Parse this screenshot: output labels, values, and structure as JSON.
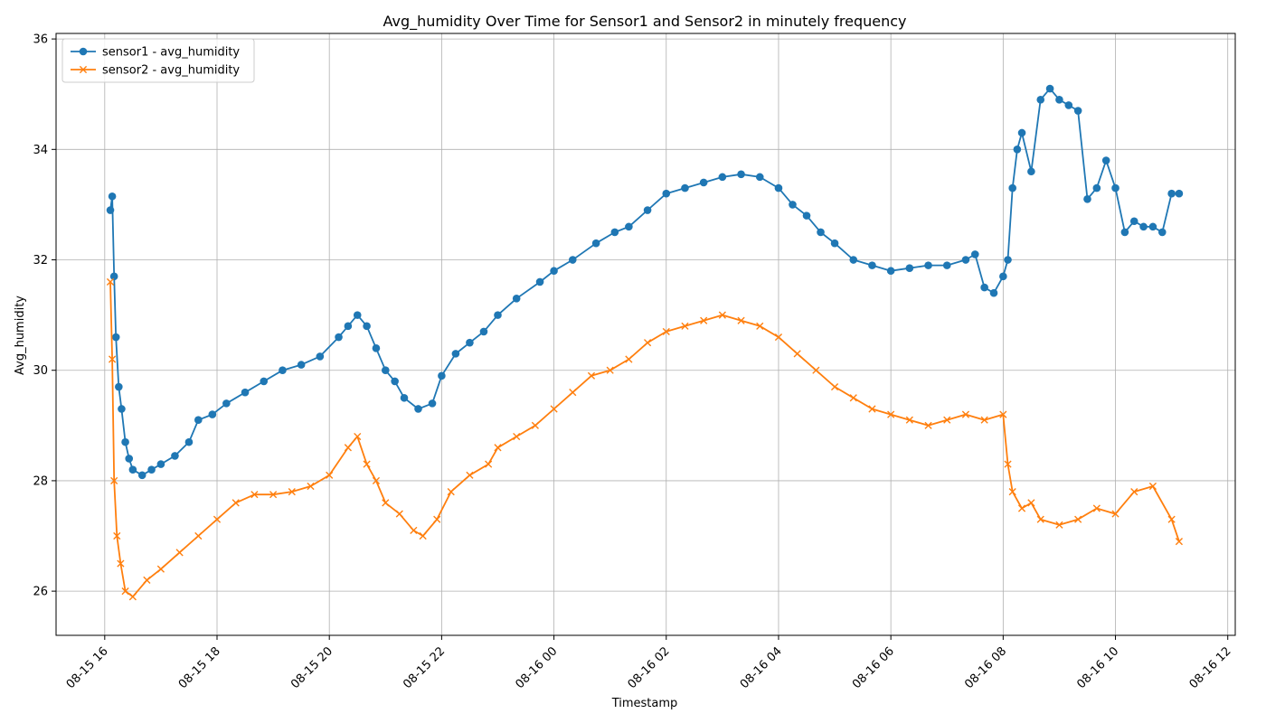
{
  "chart_data": {
    "type": "line",
    "title": "Avg_humidity Over Time for Sensor1 and Sensor2 in minutely frequency",
    "xlabel": "Timestamp",
    "ylabel": "Avg_humidity",
    "x_range": [
      "2025-08-15 15:08",
      "2025-08-16 12:08"
    ],
    "ylim": [
      25.2,
      36.1
    ],
    "x_ticks": [
      "08-15 16",
      "08-15 18",
      "08-15 20",
      "08-15 22",
      "08-16 00",
      "08-16 02",
      "08-16 04",
      "08-16 06",
      "08-16 08",
      "08-16 10",
      "08-16 12"
    ],
    "y_ticks": [
      "26",
      "28",
      "30",
      "32",
      "34",
      "36"
    ],
    "grid": true,
    "legend_position": "top-left",
    "series": [
      {
        "name": "sensor1 - avg_humidity",
        "color": "#1f77b4",
        "marker": "circle",
        "points": [
          [
            "2025-08-15 16:06",
            32.9
          ],
          [
            "2025-08-15 16:08",
            33.15
          ],
          [
            "2025-08-15 16:10",
            31.7
          ],
          [
            "2025-08-15 16:12",
            30.6
          ],
          [
            "2025-08-15 16:15",
            29.7
          ],
          [
            "2025-08-15 16:18",
            29.3
          ],
          [
            "2025-08-15 16:22",
            28.7
          ],
          [
            "2025-08-15 16:26",
            28.4
          ],
          [
            "2025-08-15 16:30",
            28.2
          ],
          [
            "2025-08-15 16:40",
            28.1
          ],
          [
            "2025-08-15 16:50",
            28.2
          ],
          [
            "2025-08-15 17:00",
            28.3
          ],
          [
            "2025-08-15 17:15",
            28.45
          ],
          [
            "2025-08-15 17:30",
            28.7
          ],
          [
            "2025-08-15 17:40",
            29.1
          ],
          [
            "2025-08-15 17:55",
            29.2
          ],
          [
            "2025-08-15 18:10",
            29.4
          ],
          [
            "2025-08-15 18:30",
            29.6
          ],
          [
            "2025-08-15 18:50",
            29.8
          ],
          [
            "2025-08-15 19:10",
            30.0
          ],
          [
            "2025-08-15 19:30",
            30.1
          ],
          [
            "2025-08-15 19:50",
            30.25
          ],
          [
            "2025-08-15 20:10",
            30.6
          ],
          [
            "2025-08-15 20:20",
            30.8
          ],
          [
            "2025-08-15 20:30",
            31.0
          ],
          [
            "2025-08-15 20:40",
            30.8
          ],
          [
            "2025-08-15 20:50",
            30.4
          ],
          [
            "2025-08-15 21:00",
            30.0
          ],
          [
            "2025-08-15 21:10",
            29.8
          ],
          [
            "2025-08-15 21:20",
            29.5
          ],
          [
            "2025-08-15 21:35",
            29.3
          ],
          [
            "2025-08-15 21:50",
            29.4
          ],
          [
            "2025-08-15 22:00",
            29.9
          ],
          [
            "2025-08-15 22:15",
            30.3
          ],
          [
            "2025-08-15 22:30",
            30.5
          ],
          [
            "2025-08-15 22:45",
            30.7
          ],
          [
            "2025-08-15 23:00",
            31.0
          ],
          [
            "2025-08-15 23:20",
            31.3
          ],
          [
            "2025-08-15 23:45",
            31.6
          ],
          [
            "2025-08-16 00:00",
            31.8
          ],
          [
            "2025-08-16 00:20",
            32.0
          ],
          [
            "2025-08-16 00:45",
            32.3
          ],
          [
            "2025-08-16 01:05",
            32.5
          ],
          [
            "2025-08-16 01:20",
            32.6
          ],
          [
            "2025-08-16 01:40",
            32.9
          ],
          [
            "2025-08-16 02:00",
            33.2
          ],
          [
            "2025-08-16 02:20",
            33.3
          ],
          [
            "2025-08-16 02:40",
            33.4
          ],
          [
            "2025-08-16 03:00",
            33.5
          ],
          [
            "2025-08-16 03:20",
            33.55
          ],
          [
            "2025-08-16 03:40",
            33.5
          ],
          [
            "2025-08-16 04:00",
            33.3
          ],
          [
            "2025-08-16 04:15",
            33.0
          ],
          [
            "2025-08-16 04:30",
            32.8
          ],
          [
            "2025-08-16 04:45",
            32.5
          ],
          [
            "2025-08-16 05:00",
            32.3
          ],
          [
            "2025-08-16 05:20",
            32.0
          ],
          [
            "2025-08-16 05:40",
            31.9
          ],
          [
            "2025-08-16 06:00",
            31.8
          ],
          [
            "2025-08-16 06:20",
            31.85
          ],
          [
            "2025-08-16 06:40",
            31.9
          ],
          [
            "2025-08-16 07:00",
            31.9
          ],
          [
            "2025-08-16 07:20",
            32.0
          ],
          [
            "2025-08-16 07:30",
            32.1
          ],
          [
            "2025-08-16 07:40",
            31.5
          ],
          [
            "2025-08-16 07:50",
            31.4
          ],
          [
            "2025-08-16 08:00",
            31.7
          ],
          [
            "2025-08-16 08:05",
            32.0
          ],
          [
            "2025-08-16 08:10",
            33.3
          ],
          [
            "2025-08-16 08:15",
            34.0
          ],
          [
            "2025-08-16 08:20",
            34.3
          ],
          [
            "2025-08-16 08:30",
            33.6
          ],
          [
            "2025-08-16 08:40",
            34.9
          ],
          [
            "2025-08-16 08:50",
            35.1
          ],
          [
            "2025-08-16 09:00",
            34.9
          ],
          [
            "2025-08-16 09:10",
            34.8
          ],
          [
            "2025-08-16 09:20",
            34.7
          ],
          [
            "2025-08-16 09:30",
            33.1
          ],
          [
            "2025-08-16 09:40",
            33.3
          ],
          [
            "2025-08-16 09:50",
            33.8
          ],
          [
            "2025-08-16 10:00",
            33.3
          ],
          [
            "2025-08-16 10:10",
            32.5
          ],
          [
            "2025-08-16 10:20",
            32.7
          ],
          [
            "2025-08-16 10:30",
            32.6
          ],
          [
            "2025-08-16 10:40",
            32.6
          ],
          [
            "2025-08-16 10:50",
            32.5
          ],
          [
            "2025-08-16 11:00",
            33.2
          ],
          [
            "2025-08-16 11:08",
            33.2
          ]
        ]
      },
      {
        "name": "sensor2 - avg_humidity",
        "color": "#ff7f0e",
        "marker": "x",
        "points": [
          [
            "2025-08-15 16:06",
            31.6
          ],
          [
            "2025-08-15 16:08",
            30.2
          ],
          [
            "2025-08-15 16:10",
            28.0
          ],
          [
            "2025-08-15 16:13",
            27.0
          ],
          [
            "2025-08-15 16:17",
            26.5
          ],
          [
            "2025-08-15 16:22",
            26.0
          ],
          [
            "2025-08-15 16:30",
            25.9
          ],
          [
            "2025-08-15 16:45",
            26.2
          ],
          [
            "2025-08-15 17:00",
            26.4
          ],
          [
            "2025-08-15 17:20",
            26.7
          ],
          [
            "2025-08-15 17:40",
            27.0
          ],
          [
            "2025-08-15 18:00",
            27.3
          ],
          [
            "2025-08-15 18:20",
            27.6
          ],
          [
            "2025-08-15 18:40",
            27.75
          ],
          [
            "2025-08-15 19:00",
            27.75
          ],
          [
            "2025-08-15 19:20",
            27.8
          ],
          [
            "2025-08-15 19:40",
            27.9
          ],
          [
            "2025-08-15 20:00",
            28.1
          ],
          [
            "2025-08-15 20:20",
            28.6
          ],
          [
            "2025-08-15 20:30",
            28.8
          ],
          [
            "2025-08-15 20:40",
            28.3
          ],
          [
            "2025-08-15 20:50",
            28.0
          ],
          [
            "2025-08-15 21:00",
            27.6
          ],
          [
            "2025-08-15 21:15",
            27.4
          ],
          [
            "2025-08-15 21:30",
            27.1
          ],
          [
            "2025-08-15 21:40",
            27.0
          ],
          [
            "2025-08-15 21:55",
            27.3
          ],
          [
            "2025-08-15 22:10",
            27.8
          ],
          [
            "2025-08-15 22:30",
            28.1
          ],
          [
            "2025-08-15 22:50",
            28.3
          ],
          [
            "2025-08-15 23:00",
            28.6
          ],
          [
            "2025-08-15 23:20",
            28.8
          ],
          [
            "2025-08-15 23:40",
            29.0
          ],
          [
            "2025-08-16 00:00",
            29.3
          ],
          [
            "2025-08-16 00:20",
            29.6
          ],
          [
            "2025-08-16 00:40",
            29.9
          ],
          [
            "2025-08-16 01:00",
            30.0
          ],
          [
            "2025-08-16 01:20",
            30.2
          ],
          [
            "2025-08-16 01:40",
            30.5
          ],
          [
            "2025-08-16 02:00",
            30.7
          ],
          [
            "2025-08-16 02:20",
            30.8
          ],
          [
            "2025-08-16 02:40",
            30.9
          ],
          [
            "2025-08-16 03:00",
            31.0
          ],
          [
            "2025-08-16 03:20",
            30.9
          ],
          [
            "2025-08-16 03:40",
            30.8
          ],
          [
            "2025-08-16 04:00",
            30.6
          ],
          [
            "2025-08-16 04:20",
            30.3
          ],
          [
            "2025-08-16 04:40",
            30.0
          ],
          [
            "2025-08-16 05:00",
            29.7
          ],
          [
            "2025-08-16 05:20",
            29.5
          ],
          [
            "2025-08-16 05:40",
            29.3
          ],
          [
            "2025-08-16 06:00",
            29.2
          ],
          [
            "2025-08-16 06:20",
            29.1
          ],
          [
            "2025-08-16 06:40",
            29.0
          ],
          [
            "2025-08-16 07:00",
            29.1
          ],
          [
            "2025-08-16 07:20",
            29.2
          ],
          [
            "2025-08-16 07:40",
            29.1
          ],
          [
            "2025-08-16 08:00",
            29.2
          ],
          [
            "2025-08-16 08:05",
            28.3
          ],
          [
            "2025-08-16 08:10",
            27.8
          ],
          [
            "2025-08-16 08:20",
            27.5
          ],
          [
            "2025-08-16 08:30",
            27.6
          ],
          [
            "2025-08-16 08:40",
            27.3
          ],
          [
            "2025-08-16 09:00",
            27.2
          ],
          [
            "2025-08-16 09:20",
            27.3
          ],
          [
            "2025-08-16 09:40",
            27.5
          ],
          [
            "2025-08-16 10:00",
            27.4
          ],
          [
            "2025-08-16 10:20",
            27.8
          ],
          [
            "2025-08-16 10:40",
            27.9
          ],
          [
            "2025-08-16 11:00",
            27.3
          ],
          [
            "2025-08-16 11:08",
            26.9
          ]
        ]
      }
    ]
  }
}
